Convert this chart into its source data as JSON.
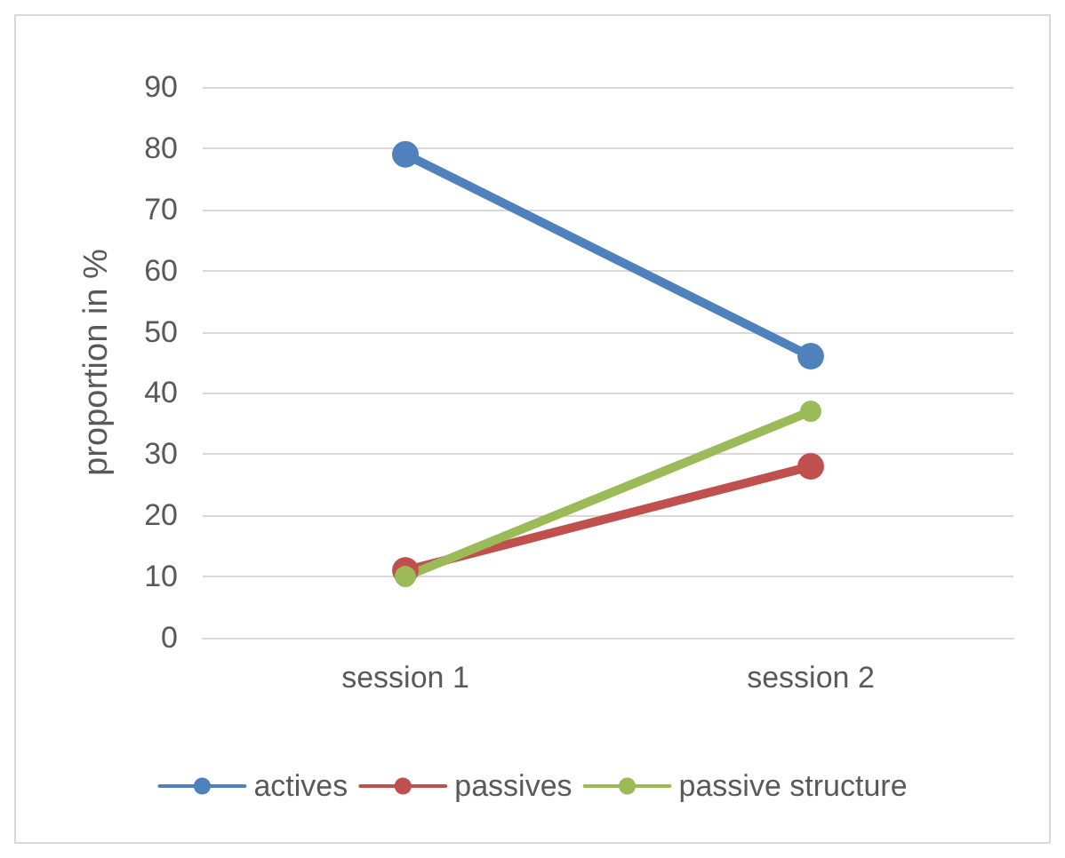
{
  "chart_data": {
    "type": "line",
    "ylabel": "proportion in %",
    "categories": [
      "session 1",
      "session 2"
    ],
    "series": [
      {
        "name": "actives",
        "color": "#4f81bd",
        "values": [
          79,
          46
        ]
      },
      {
        "name": "passives",
        "color": "#c0504d",
        "values": [
          11,
          28
        ]
      },
      {
        "name": "passive structure",
        "color": "#9bbb59",
        "values": [
          10,
          37
        ]
      }
    ],
    "ylim": [
      0,
      90
    ],
    "yticks": [
      0,
      10,
      20,
      30,
      40,
      50,
      60,
      70,
      80,
      90
    ],
    "grid": "y",
    "legend": "bottom",
    "marker": "circle",
    "line_style": "solid"
  }
}
